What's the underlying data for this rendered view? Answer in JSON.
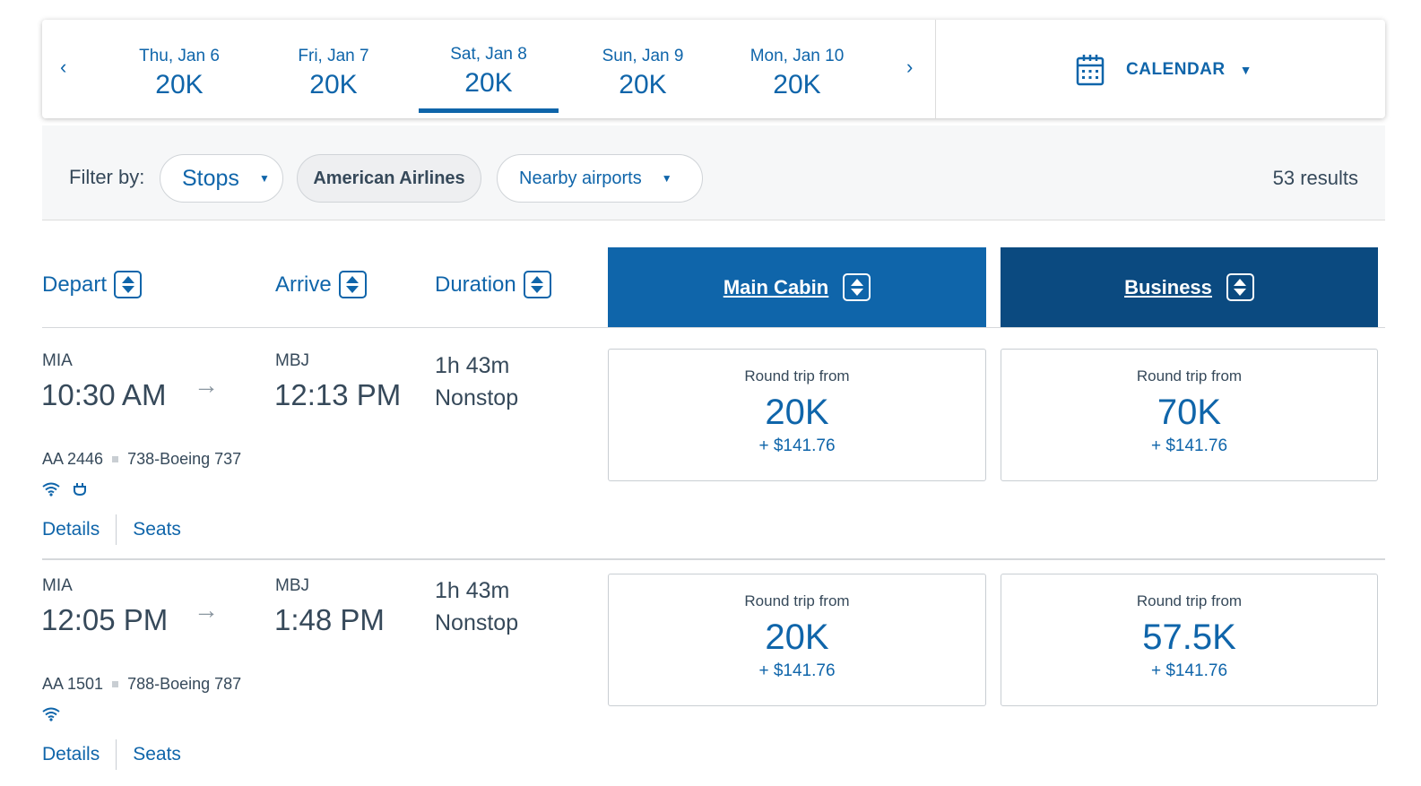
{
  "date_bar": {
    "prev_icon": "chevron-left-icon",
    "next_icon": "chevron-right-icon",
    "dates": [
      {
        "day": "Thu, Jan 6",
        "price": "20K",
        "selected": false
      },
      {
        "day": "Fri, Jan 7",
        "price": "20K",
        "selected": false
      },
      {
        "day": "Sat, Jan 8",
        "price": "20K",
        "selected": true
      },
      {
        "day": "Sun, Jan 9",
        "price": "20K",
        "selected": false
      },
      {
        "day": "Mon, Jan 10",
        "price": "20K",
        "selected": false
      }
    ],
    "calendar_label": "CALENDAR"
  },
  "filters": {
    "label": "Filter by:",
    "stops": "Stops",
    "airline": "American Airlines",
    "nearby": "Nearby airports",
    "results": "53 results"
  },
  "columns": {
    "depart": "Depart",
    "arrive": "Arrive",
    "duration": "Duration",
    "main_cabin": "Main Cabin",
    "business": "Business"
  },
  "flights": [
    {
      "depart_code": "MIA",
      "depart_time": "10:30 AM",
      "arrive_code": "MBJ",
      "arrive_time": "12:13 PM",
      "duration": "1h 43m",
      "stops": "Nonstop",
      "flight_number": "AA 2446",
      "aircraft": "738-Boeing 737",
      "amenities": [
        "wifi-icon",
        "power-outlet-icon"
      ],
      "details_label": "Details",
      "seats_label": "Seats",
      "main": {
        "label": "Round trip from",
        "points": "20K",
        "tax": "+ $141.76"
      },
      "business": {
        "label": "Round trip from",
        "points": "70K",
        "tax": "+ $141.76"
      }
    },
    {
      "depart_code": "MIA",
      "depart_time": "12:05 PM",
      "arrive_code": "MBJ",
      "arrive_time": "1:48 PM",
      "duration": "1h 43m",
      "stops": "Nonstop",
      "flight_number": "AA 1501",
      "aircraft": "788-Boeing 787",
      "amenities": [
        "wifi-icon"
      ],
      "details_label": "Details",
      "seats_label": "Seats",
      "main": {
        "label": "Round trip from",
        "points": "20K",
        "tax": "+ $141.76"
      },
      "business": {
        "label": "Round trip from",
        "points": "57.5K",
        "tax": "+ $141.76"
      }
    }
  ]
}
